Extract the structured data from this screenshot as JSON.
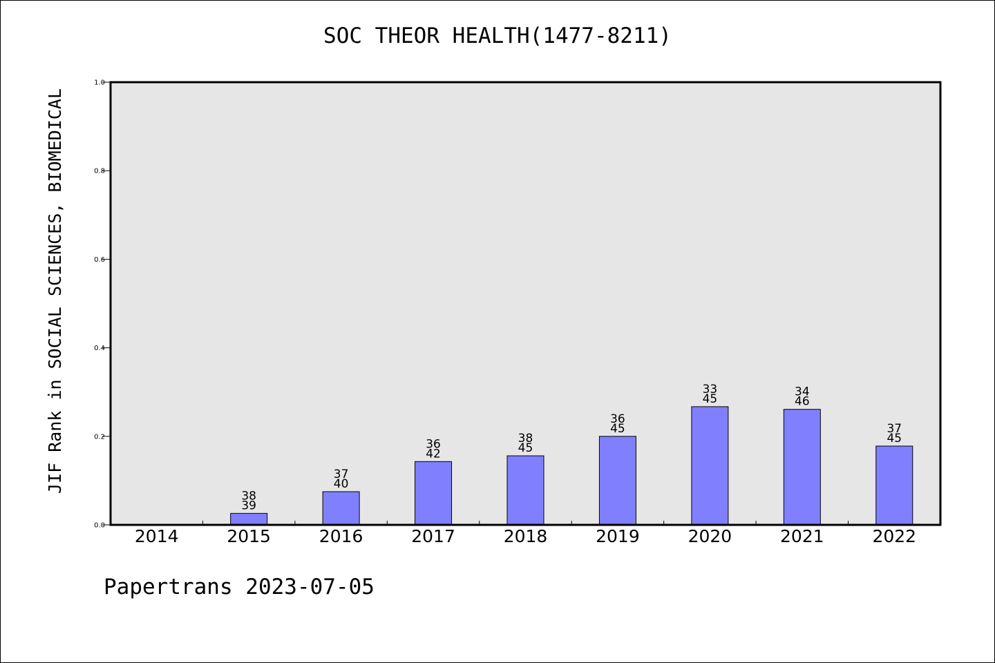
{
  "chart_data": {
    "type": "bar",
    "title": "SOC THEOR HEALTH(1477-8211)",
    "xlabel": "",
    "ylabel": "JIF Rank in SOCIAL SCIENCES, BIOMEDICAL",
    "ylim": [
      0.0,
      1.0
    ],
    "yticks": [
      "0.0",
      "0.2",
      "0.4",
      "0.6",
      "0.8",
      "1.0"
    ],
    "categories": [
      "2014",
      "2015",
      "2016",
      "2017",
      "2018",
      "2019",
      "2020",
      "2021",
      "2022"
    ],
    "values": [
      null,
      0.026,
      0.075,
      0.143,
      0.156,
      0.2,
      0.267,
      0.261,
      0.178
    ],
    "labels": [
      null,
      [
        "38",
        "39"
      ],
      [
        "37",
        "40"
      ],
      [
        "36",
        "42"
      ],
      [
        "38",
        "45"
      ],
      [
        "36",
        "45"
      ],
      [
        "33",
        "45"
      ],
      [
        "34",
        "46"
      ],
      [
        "37",
        "45"
      ]
    ],
    "bar_color": "#8080ff",
    "plot_background": "#e6e6e6",
    "grid": false,
    "legend": "none"
  },
  "footer": {
    "text": "Papertrans 2023-07-05"
  }
}
